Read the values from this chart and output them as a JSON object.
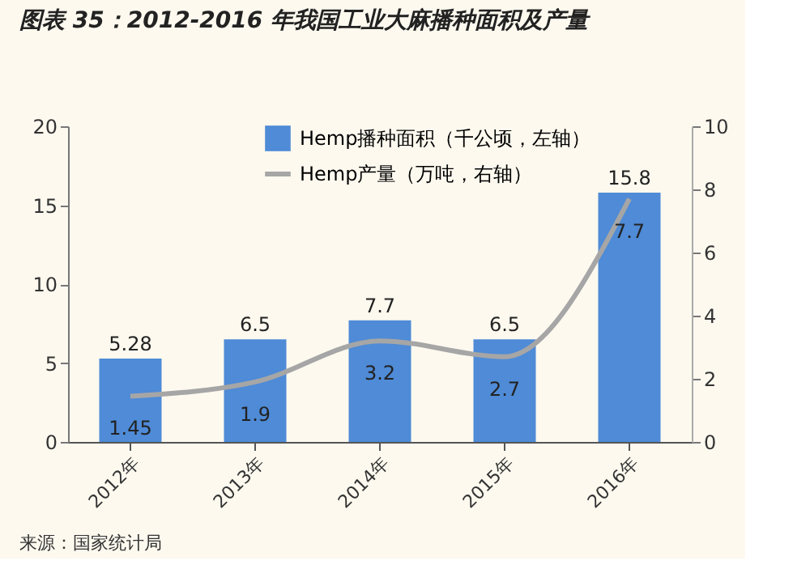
{
  "chart_data": {
    "type": "bar",
    "title": "图表 35：2012-2016 年我国工业大麻播种面积及产量",
    "categories": [
      "2012年",
      "2013年",
      "2014年",
      "2015年",
      "2016年"
    ],
    "series": [
      {
        "name": "Hemp播种面积（千公顷，左轴）",
        "color": "#4f8bd6",
        "values": [
          5.28,
          6.5,
          7.7,
          6.5,
          15.8
        ]
      },
      {
        "name": "Hemp产量（万吨，右轴）",
        "type": "line",
        "axis": "y2",
        "color": "#a6a6a6",
        "values": [
          1.45,
          1.9,
          3.2,
          2.7,
          7.7
        ]
      }
    ],
    "ylim": [
      0,
      20
    ],
    "yticks": [
      0,
      5,
      10,
      15,
      20
    ],
    "y2lim": [
      0,
      10
    ],
    "y2ticks": [
      0,
      2,
      4,
      6,
      8,
      10
    ],
    "data_labels": true,
    "grid": false,
    "legend": "top",
    "marker": "none",
    "line_style": "solid",
    "annotations": [
      "来源：国家统计局"
    ]
  }
}
